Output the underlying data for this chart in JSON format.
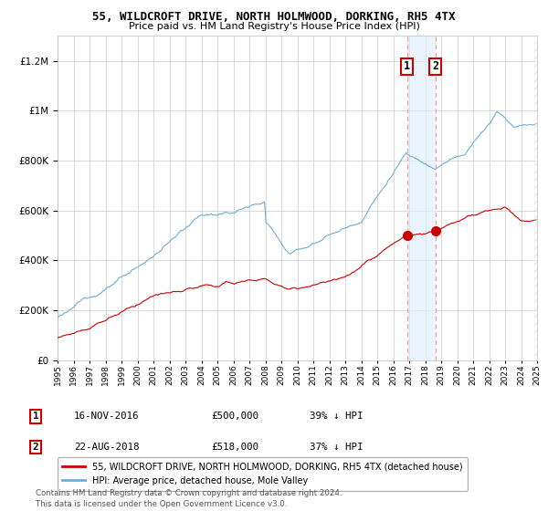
{
  "title": "55, WILDCROFT DRIVE, NORTH HOLMWOOD, DORKING, RH5 4TX",
  "subtitle": "Price paid vs. HM Land Registry's House Price Index (HPI)",
  "legend_line1": "55, WILDCROFT DRIVE, NORTH HOLMWOOD, DORKING, RH5 4TX (detached house)",
  "legend_line2": "HPI: Average price, detached house, Mole Valley",
  "annotation1_label": "1",
  "annotation1_date": "16-NOV-2016",
  "annotation1_price": "£500,000",
  "annotation1_hpi": "39% ↓ HPI",
  "annotation2_label": "2",
  "annotation2_date": "22-AUG-2018",
  "annotation2_price": "£518,000",
  "annotation2_hpi": "37% ↓ HPI",
  "footer": "Contains HM Land Registry data © Crown copyright and database right 2024.\nThis data is licensed under the Open Government Licence v3.0.",
  "hpi_color": "#6baed6",
  "price_color": "#cc0000",
  "marker_color": "#cc0000",
  "vline_color": "#ff9999",
  "shade_color": "#ddeeff",
  "background_color": "#ffffff",
  "grid_color": "#cccccc",
  "ylim": [
    0,
    1300000
  ],
  "yticks": [
    0,
    200000,
    400000,
    600000,
    800000,
    1000000,
    1200000
  ],
  "ytick_labels": [
    "£0",
    "£200K",
    "£400K",
    "£600K",
    "£800K",
    "£1M",
    "£1.2M"
  ],
  "sale1_year": 2016.88,
  "sale2_year": 2018.64,
  "sale1_price": 500000,
  "sale2_price": 518000
}
